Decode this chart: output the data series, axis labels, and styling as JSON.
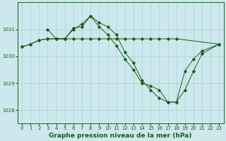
{
  "background_color": "#cce8ec",
  "grid_color": "#aacfd4",
  "line_color": "#1a5c1a",
  "xlim": [
    -0.5,
    23.5
  ],
  "ylim": [
    1027.5,
    1032.0
  ],
  "yticks": [
    1028,
    1029,
    1030,
    1031
  ],
  "xticks": [
    0,
    1,
    2,
    3,
    4,
    5,
    6,
    7,
    8,
    9,
    10,
    11,
    12,
    13,
    14,
    15,
    16,
    17,
    18,
    19,
    20,
    21,
    22,
    23
  ],
  "title": "Graphe pression niveau de la mer (hPa)",
  "title_fontsize": 6.5,
  "tick_fontsize": 5.0,
  "series": [
    {
      "x": [
        0,
        1,
        2,
        3,
        4,
        5,
        6,
        7,
        8,
        9,
        10,
        11,
        12,
        13,
        14,
        15,
        16,
        17,
        18,
        23
      ],
      "y": [
        1030.35,
        1030.45,
        1030.6,
        1030.65,
        1030.65,
        1030.65,
        1030.65,
        1030.65,
        1030.65,
        1030.65,
        1030.65,
        1030.65,
        1030.65,
        1030.65,
        1030.65,
        1030.65,
        1030.65,
        1030.65,
        1030.65,
        1030.45
      ]
    },
    {
      "x": [
        0,
        1,
        2,
        3,
        4,
        5,
        6,
        7,
        8,
        9,
        10,
        11,
        12,
        13,
        14,
        15,
        16,
        17,
        18,
        19,
        20,
        21,
        23
      ],
      "y": [
        1030.35,
        1030.45,
        1030.6,
        1030.65,
        1030.65,
        1030.65,
        1031.0,
        1031.2,
        1031.5,
        1031.1,
        1030.8,
        1030.4,
        1029.9,
        1029.5,
        1029.0,
        1028.9,
        1028.75,
        1028.3,
        1028.3,
        1029.45,
        1029.9,
        1030.2,
        1030.45
      ]
    },
    {
      "x": [
        3,
        4,
        5,
        6,
        7,
        8,
        9,
        10,
        11,
        12,
        13,
        14,
        15,
        16,
        17,
        18,
        19,
        20,
        21,
        23
      ],
      "y": [
        1031.0,
        1030.65,
        1030.65,
        1031.05,
        1031.1,
        1031.5,
        1031.25,
        1031.1,
        1030.8,
        1030.15,
        1029.75,
        1029.1,
        1028.75,
        1028.45,
        1028.3,
        1028.3,
        1028.75,
        1029.45,
        1030.1,
        1030.45
      ]
    }
  ]
}
